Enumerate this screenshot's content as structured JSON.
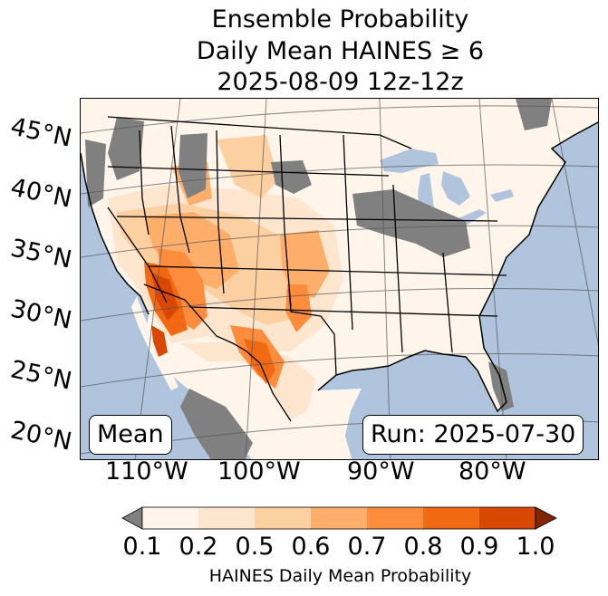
{
  "title": {
    "line1": "Ensemble Probability",
    "line2": "Daily Mean HAINES ≥ 6",
    "line3": "2025-08-09 12z-12z"
  },
  "map": {
    "ocean_color": "#b0c4de",
    "land_color": "#fff5eb",
    "nodata_color": "#808080",
    "lat_labels": [
      "45°N",
      "40°N",
      "35°N",
      "30°N",
      "25°N",
      "20°N"
    ],
    "lon_labels": [
      "110°W",
      "100°W",
      "90°W",
      "80°W"
    ],
    "stat_label": "Mean",
    "run_label": "Run: 2025-07-30"
  },
  "colorbar": {
    "ticks": [
      "0.1",
      "0.2",
      "0.5",
      "0.6",
      "0.7",
      "0.8",
      "0.9",
      "1.0"
    ],
    "colors": [
      "#fff5eb",
      "#fee6ce",
      "#fdd0a2",
      "#fdae6b",
      "#fd8d3c",
      "#f16913",
      "#d94801",
      "#a63603"
    ],
    "under_color": "#808080",
    "over_color": "#7f2704",
    "label": "HAINES Daily Mean Probability"
  }
}
